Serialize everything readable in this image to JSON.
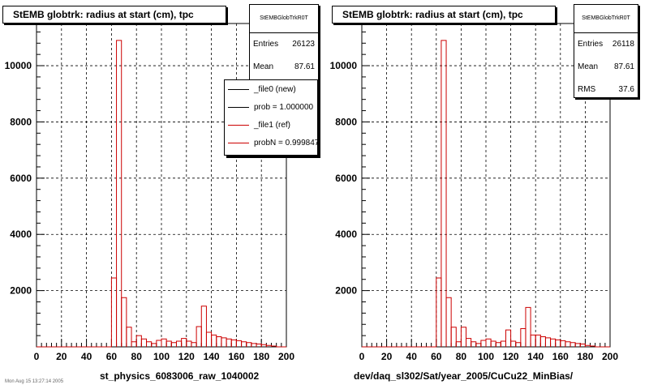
{
  "chart_data": [
    {
      "type": "bar",
      "title": "StEMB globtrk: radius at start (cm), tpc",
      "xlabel": "st_physics_6083006_raw_1040002",
      "ylabel": "",
      "xlim": [
        0,
        200
      ],
      "ylim": [
        0,
        11500
      ],
      "xticks": [
        "0",
        "20",
        "40",
        "60",
        "80",
        "100",
        "120",
        "140",
        "160",
        "180",
        "200"
      ],
      "yticks": [
        "2000",
        "4000",
        "6000",
        "8000",
        "10000"
      ],
      "grid": true,
      "bin_width": 4,
      "x": [
        0,
        4,
        8,
        12,
        16,
        20,
        24,
        28,
        32,
        36,
        40,
        44,
        48,
        52,
        56,
        60,
        64,
        68,
        72,
        76,
        80,
        84,
        88,
        92,
        96,
        100,
        104,
        108,
        112,
        116,
        120,
        124,
        128,
        132,
        136,
        140,
        144,
        148,
        152,
        156,
        160,
        164,
        168,
        172,
        176,
        180,
        184,
        188,
        192,
        196
      ],
      "series": [
        {
          "name": "_file1 (ref)",
          "color": "#cc0000",
          "values": [
            0,
            0,
            0,
            0,
            0,
            0,
            0,
            0,
            0,
            0,
            0,
            0,
            0,
            0,
            0,
            2450,
            10900,
            1750,
            700,
            180,
            400,
            280,
            180,
            120,
            230,
            280,
            200,
            150,
            200,
            300,
            200,
            150,
            720,
            1450,
            520,
            420,
            360,
            320,
            280,
            250,
            220,
            180,
            150,
            120,
            100,
            80,
            50,
            30,
            0,
            0
          ]
        }
      ],
      "legend": {
        "placement": "top-right",
        "entries": [
          {
            "label": "_file0 (new)",
            "color": "#000000"
          },
          {
            "label": "prob = 1.000000",
            "color": "#000000"
          },
          {
            "label": "_file1 (ref)",
            "color": "#cc0000"
          },
          {
            "label": "probN = 0.999847",
            "color": "#cc0000"
          }
        ]
      },
      "stats": {
        "name": "StEMBGlobTrkR0T",
        "rows": [
          {
            "label": "Entries",
            "value": "26123"
          },
          {
            "label": "Mean",
            "value": "87.61"
          }
        ]
      }
    },
    {
      "type": "bar",
      "title": "StEMB globtrk: radius at start (cm), tpc",
      "xlabel": "dev/daq_sl302/Sat/year_2005/CuCu22_MinBias/",
      "ylabel": "",
      "xlim": [
        0,
        200
      ],
      "ylim": [
        0,
        11500
      ],
      "xticks": [
        "0",
        "20",
        "40",
        "60",
        "80",
        "100",
        "120",
        "140",
        "160",
        "180",
        "200"
      ],
      "yticks": [
        "2000",
        "4000",
        "6000",
        "8000",
        "10000"
      ],
      "grid": true,
      "bin_width": 4,
      "x": [
        0,
        4,
        8,
        12,
        16,
        20,
        24,
        28,
        32,
        36,
        40,
        44,
        48,
        52,
        56,
        60,
        64,
        68,
        72,
        76,
        80,
        84,
        88,
        92,
        96,
        100,
        104,
        108,
        112,
        116,
        120,
        124,
        128,
        132,
        136,
        140,
        144,
        148,
        152,
        156,
        160,
        164,
        168,
        172,
        176,
        180,
        184,
        188,
        192,
        196
      ],
      "series": [
        {
          "name": "",
          "color": "#cc0000",
          "values": [
            0,
            0,
            0,
            0,
            0,
            0,
            0,
            0,
            0,
            0,
            0,
            0,
            0,
            0,
            0,
            2450,
            10900,
            1750,
            700,
            180,
            700,
            300,
            180,
            120,
            230,
            280,
            200,
            150,
            200,
            600,
            200,
            150,
            650,
            1400,
            420,
            420,
            360,
            320,
            280,
            250,
            220,
            180,
            150,
            120,
            100,
            50,
            30,
            0,
            0,
            0
          ]
        }
      ],
      "stats": {
        "name": "StEMBGlobTrkR0T",
        "rows": [
          {
            "label": "Entries",
            "value": "26118"
          },
          {
            "label": "Mean",
            "value": "87.61"
          },
          {
            "label": "RMS",
            "value": "37.6"
          }
        ]
      }
    }
  ],
  "footer_stamp": "Mon Aug 15 13:27:14 2005"
}
